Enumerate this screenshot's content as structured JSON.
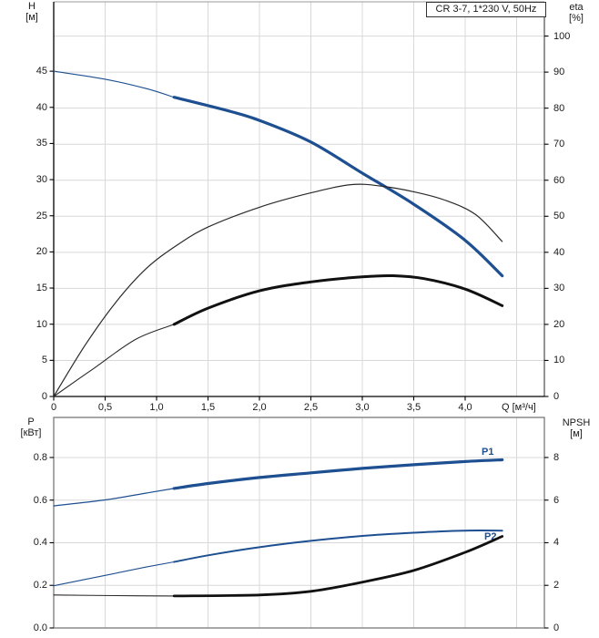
{
  "colors": {
    "curve_blue": "#1d4f91",
    "curve_black": "#111111",
    "thin_black": "#2a2a2a",
    "grid": "#d8d8d8",
    "axis_black": "#000000",
    "frame_gray": "#6e6e6e",
    "top_border_gray": "#9a9a9a",
    "right_border_gray": "#4d4d4d"
  },
  "chart_data": [
    {
      "type": "line",
      "title": "CR 3-7, 1*230 V, 50Hz",
      "grid": true,
      "legend_position": "none",
      "x_axis": {
        "label": "Q [м³/ч]",
        "range": [
          0,
          4.77
        ],
        "grid_step": 0.5,
        "ticks": [
          "0",
          "0,5",
          "1,0",
          "1,5",
          "2,0",
          "2,5",
          "3,0",
          "3,5",
          "4,0"
        ]
      },
      "left_axis": {
        "label_lines": [
          "H",
          "[м]"
        ],
        "range": [
          0,
          54.6
        ],
        "ticks": [
          "0",
          "5",
          "10",
          "15",
          "20",
          "25",
          "30",
          "35",
          "40",
          "45"
        ]
      },
      "right_axis": {
        "label_lines": [
          "eta",
          "[%]"
        ],
        "range": [
          0,
          109.5
        ],
        "ticks": [
          "0",
          "10",
          "20",
          "30",
          "40",
          "50",
          "60",
          "70",
          "80",
          "90",
          "100"
        ]
      },
      "series": [
        {
          "name": "head-curve-thin",
          "axis": "left",
          "color": "#1d4f91",
          "width": 1.1,
          "points": [
            [
              0,
              45.0
            ],
            [
              0.5,
              43.9
            ],
            [
              0.9,
              42.6
            ],
            [
              1.17,
              41.4
            ]
          ]
        },
        {
          "name": "head-curve",
          "axis": "left",
          "color": "#1d4f91",
          "width": 3.2,
          "points": [
            [
              1.17,
              41.4
            ],
            [
              1.7,
              39.5
            ],
            [
              2.0,
              38.2
            ],
            [
              2.5,
              35.2
            ],
            [
              3.0,
              30.9
            ],
            [
              3.5,
              26.6
            ],
            [
              4.0,
              21.6
            ],
            [
              4.36,
              16.7
            ]
          ]
        },
        {
          "name": "eta-pump-curve",
          "axis": "right",
          "color": "#2a2a2a",
          "width": 1.2,
          "points": [
            [
              0,
              0
            ],
            [
              0.3,
              14
            ],
            [
              0.6,
              26
            ],
            [
              0.9,
              35.5
            ],
            [
              1.2,
              42
            ],
            [
              1.5,
              47
            ],
            [
              2.0,
              52.5
            ],
            [
              2.5,
              56.5
            ],
            [
              2.9,
              58.8
            ],
            [
              3.2,
              58.3
            ],
            [
              3.5,
              56.8
            ],
            [
              3.8,
              54.5
            ],
            [
              4.1,
              50.5
            ],
            [
              4.36,
              43
            ]
          ]
        },
        {
          "name": "eta-total-curve-thin",
          "axis": "right",
          "color": "#2a2a2a",
          "width": 1.1,
          "points": [
            [
              0,
              0
            ],
            [
              0.4,
              8
            ],
            [
              0.8,
              15.9
            ],
            [
              1.17,
              20
            ]
          ]
        },
        {
          "name": "eta-total-curve",
          "axis": "right",
          "color": "#111111",
          "width": 3.0,
          "points": [
            [
              1.17,
              20
            ],
            [
              1.5,
              24.5
            ],
            [
              2.0,
              29.3
            ],
            [
              2.5,
              31.8
            ],
            [
              3.0,
              33.2
            ],
            [
              3.3,
              33.5
            ],
            [
              3.6,
              32.7
            ],
            [
              4.0,
              29.8
            ],
            [
              4.36,
              25.2
            ]
          ]
        }
      ]
    },
    {
      "type": "line",
      "title": "",
      "grid": true,
      "legend_position": "none",
      "x_axis": {
        "label": "",
        "range": [
          0,
          4.77
        ],
        "grid_step": 0.5,
        "ticks": []
      },
      "left_axis": {
        "label_lines": [
          "P",
          "[кВт]"
        ],
        "range": [
          0,
          0.988
        ],
        "ticks": [
          "0.0",
          "0.2",
          "0.4",
          "0.6",
          "0.8"
        ]
      },
      "right_axis": {
        "label_lines": [
          "NPSH",
          "[м]"
        ],
        "range": [
          0,
          9.88
        ],
        "ticks": [
          "0",
          "2",
          "4",
          "6",
          "8"
        ]
      },
      "series": [
        {
          "name": "p1-curve-thin",
          "axis": "left",
          "color": "#1d4f91",
          "width": 1.2,
          "points": [
            [
              0,
              0.573
            ],
            [
              0.5,
              0.601
            ],
            [
              0.9,
              0.633
            ],
            [
              1.17,
              0.655
            ]
          ]
        },
        {
          "name": "p1-curve",
          "axis": "left",
          "color": "#1d4f91",
          "width": 3.2,
          "points": [
            [
              1.17,
              0.655
            ],
            [
              1.5,
              0.678
            ],
            [
              2.0,
              0.706
            ],
            [
              2.5,
              0.728
            ],
            [
              3.0,
              0.749
            ],
            [
              3.5,
              0.766
            ],
            [
              4.0,
              0.781
            ],
            [
              4.36,
              0.789
            ]
          ]
        },
        {
          "name": "p2-curve-thin",
          "axis": "left",
          "color": "#1d4f91",
          "width": 1.1,
          "points": [
            [
              0,
              0.198
            ],
            [
              0.5,
              0.247
            ],
            [
              0.9,
              0.286
            ],
            [
              1.17,
              0.31
            ]
          ]
        },
        {
          "name": "p2-curve",
          "axis": "left",
          "color": "#1d4f91",
          "width": 2.0,
          "points": [
            [
              1.17,
              0.31
            ],
            [
              1.5,
              0.341
            ],
            [
              2.0,
              0.379
            ],
            [
              2.5,
              0.409
            ],
            [
              3.0,
              0.432
            ],
            [
              3.5,
              0.447
            ],
            [
              4.0,
              0.457
            ],
            [
              4.36,
              0.457
            ]
          ]
        },
        {
          "name": "npsh-curve-thin",
          "axis": "right",
          "color": "#2a2a2a",
          "width": 1.1,
          "points": [
            [
              0,
              1.55
            ],
            [
              0.6,
              1.52
            ],
            [
              1.17,
              1.5
            ]
          ]
        },
        {
          "name": "npsh-curve",
          "axis": "right",
          "color": "#111111",
          "width": 2.8,
          "points": [
            [
              1.17,
              1.5
            ],
            [
              2.0,
              1.55
            ],
            [
              2.5,
              1.72
            ],
            [
              3.0,
              2.15
            ],
            [
              3.5,
              2.7
            ],
            [
              4.0,
              3.55
            ],
            [
              4.36,
              4.3
            ]
          ]
        }
      ],
      "annotations": [
        {
          "text": "P1",
          "color": "#1d4f91"
        },
        {
          "text": "P2",
          "color": "#1d4f91"
        }
      ]
    }
  ]
}
